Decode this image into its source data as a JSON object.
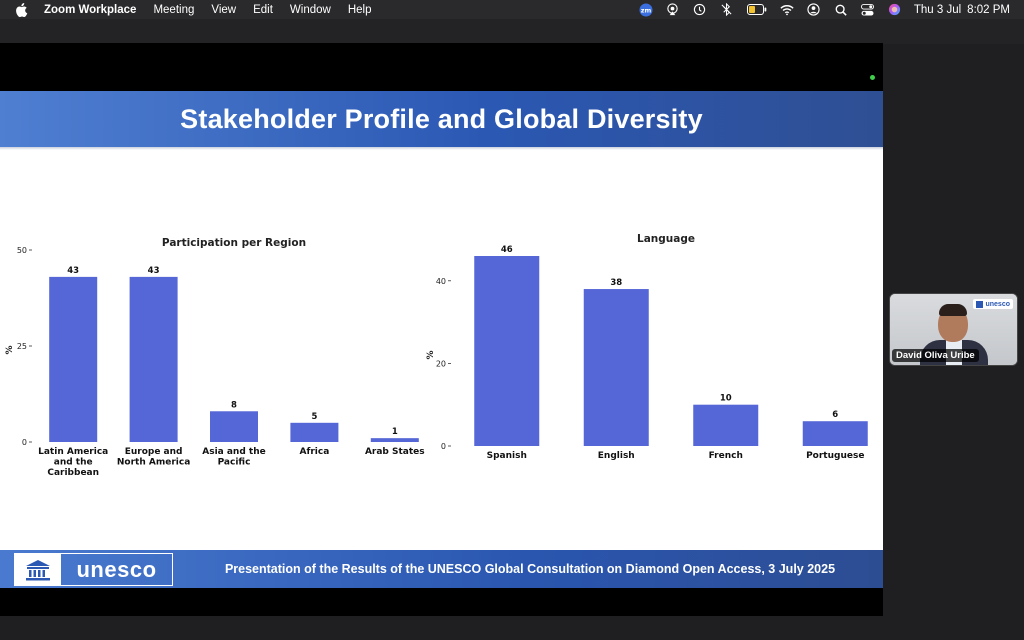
{
  "menubar": {
    "app_name": "Zoom Workplace",
    "items": [
      "Meeting",
      "View",
      "Edit",
      "Window",
      "Help"
    ],
    "status_icons": [
      "zoom-status-icon",
      "airplay-icon",
      "time-machine-icon",
      "bluetooth-off-icon",
      "battery-icon",
      "wifi-icon",
      "user-icon",
      "search-icon",
      "control-center-icon",
      "siri-icon"
    ],
    "zoom_badge": "zm",
    "date": "Thu 3 Jul",
    "time": "8:02 PM"
  },
  "slide": {
    "title": "Stakeholder Profile and Global Diversity",
    "footer_logo_text": "unesco",
    "footer_text": "Presentation of the Results of the UNESCO Global Consultation on Diamond Open Access, 3 July 2025",
    "colors": {
      "header": "#2b58b3",
      "bar": "#5566d6"
    }
  },
  "chart_data": [
    {
      "type": "bar",
      "title": "Participation per Region",
      "ylabel": "%",
      "xlabel": "",
      "categories": [
        "Latin America and the Caribbean",
        "Europe and North America",
        "Asia and the Pacific",
        "Africa",
        "Arab States"
      ],
      "category_lines": [
        [
          "Latin America",
          "and the",
          "Caribbean"
        ],
        [
          "Europe and",
          "North America"
        ],
        [
          "Asia and the",
          "Pacific"
        ],
        [
          "Africa"
        ],
        [
          "Arab States"
        ]
      ],
      "values": [
        43,
        43,
        8,
        5,
        1
      ],
      "ylim": [
        0,
        50
      ],
      "yticks": [
        0,
        25,
        50
      ],
      "grid": false,
      "bar_color": "#5566d6"
    },
    {
      "type": "bar",
      "title": "Language",
      "ylabel": "%",
      "xlabel": "",
      "categories": [
        "Spanish",
        "English",
        "French",
        "Portuguese"
      ],
      "category_lines": [
        [
          "Spanish"
        ],
        [
          "English"
        ],
        [
          "French"
        ],
        [
          "Portuguese"
        ]
      ],
      "values": [
        46,
        38,
        10,
        6
      ],
      "ylim": [
        0,
        46
      ],
      "yticks": [
        0,
        20,
        40
      ],
      "grid": false,
      "bar_color": "#5566d6"
    }
  ],
  "participant": {
    "name": "David Oliva Uribe",
    "badge_text": "unesco"
  }
}
